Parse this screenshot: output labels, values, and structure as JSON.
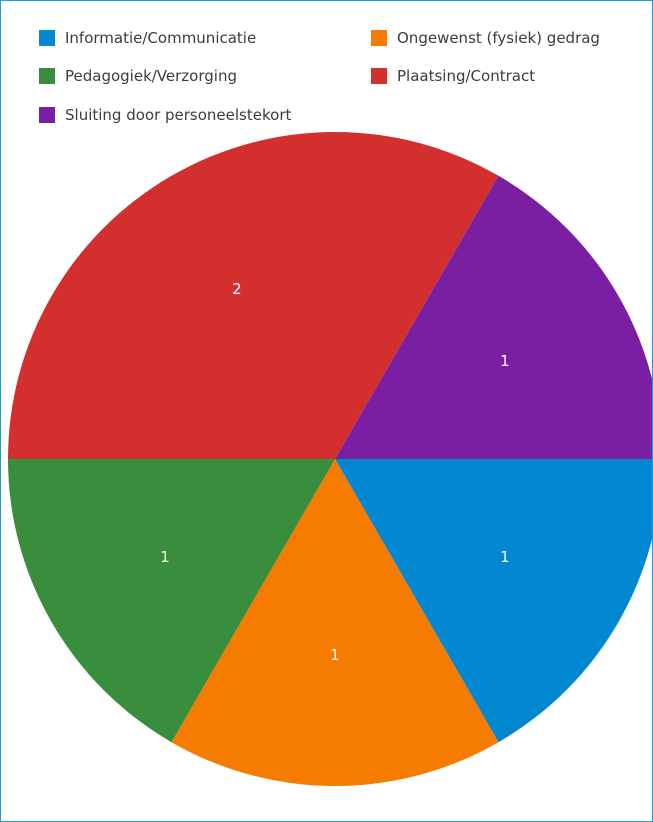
{
  "chart_data": {
    "type": "pie",
    "categories": [
      "Plaatsing/Contract",
      "Sluiting door personeelstekort",
      "Informatie/Communicatie",
      "Ongewenst (fysiek) gedrag",
      "Pedagogiek/Verzorging"
    ],
    "values": [
      2,
      1,
      1,
      1,
      1
    ],
    "colors": [
      "#d32f2f",
      "#7b1fa2",
      "#0288d1",
      "#f57c00",
      "#388e3c"
    ],
    "legend": [
      {
        "label": "Informatie/Communicatie",
        "color": "#0288d1"
      },
      {
        "label": "Ongewenst (fysiek) gedrag",
        "color": "#f57c00"
      },
      {
        "label": "Pedagogiek/Verzorging",
        "color": "#388e3c"
      },
      {
        "label": "Plaatsing/Contract",
        "color": "#d32f2f"
      },
      {
        "label": "Sluiting door personeelstekort",
        "color": "#7b1fa2"
      }
    ],
    "legend_position": "top",
    "data_labels": true
  }
}
